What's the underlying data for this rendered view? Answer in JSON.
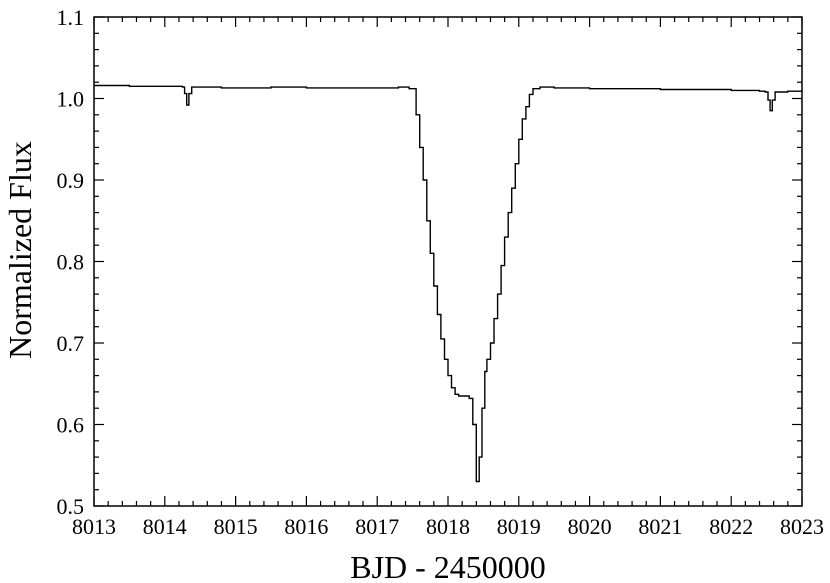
{
  "chart_data": {
    "type": "line",
    "title": "",
    "xlabel": "BJD - 2450000",
    "ylabel": "Normalized Flux",
    "xlim": [
      8013,
      8023
    ],
    "ylim": [
      0.5,
      1.1
    ],
    "grid": false,
    "x_ticks": [
      "8013",
      "8014",
      "8015",
      "8016",
      "8017",
      "8018",
      "8019",
      "8020",
      "8021",
      "8022",
      "8023"
    ],
    "y_ticks": [
      "0.5",
      "0.6",
      "0.7",
      "0.8",
      "0.9",
      "1.0",
      "1.1"
    ],
    "series": [
      {
        "name": "",
        "step": true,
        "points": [
          [
            8013.0,
            1.016
          ],
          [
            8013.5,
            1.015
          ],
          [
            8014.0,
            1.015
          ],
          [
            8014.25,
            1.014
          ],
          [
            8014.28,
            1.006
          ],
          [
            8014.31,
            0.992
          ],
          [
            8014.34,
            1.006
          ],
          [
            8014.38,
            1.014
          ],
          [
            8014.8,
            1.013
          ],
          [
            8015.0,
            1.013
          ],
          [
            8015.5,
            1.014
          ],
          [
            8016.0,
            1.013
          ],
          [
            8016.5,
            1.013
          ],
          [
            8017.0,
            1.013
          ],
          [
            8017.3,
            1.014
          ],
          [
            8017.45,
            1.012
          ],
          [
            8017.55,
            0.98
          ],
          [
            8017.6,
            0.94
          ],
          [
            8017.65,
            0.9
          ],
          [
            8017.7,
            0.85
          ],
          [
            8017.75,
            0.81
          ],
          [
            8017.8,
            0.77
          ],
          [
            8017.85,
            0.735
          ],
          [
            8017.9,
            0.705
          ],
          [
            8017.95,
            0.68
          ],
          [
            8018.0,
            0.66
          ],
          [
            8018.05,
            0.645
          ],
          [
            8018.1,
            0.637
          ],
          [
            8018.15,
            0.635
          ],
          [
            8018.25,
            0.635
          ],
          [
            8018.3,
            0.632
          ],
          [
            8018.35,
            0.6
          ],
          [
            8018.4,
            0.53
          ],
          [
            8018.44,
            0.56
          ],
          [
            8018.48,
            0.62
          ],
          [
            8018.52,
            0.665
          ],
          [
            8018.55,
            0.68
          ],
          [
            8018.6,
            0.7
          ],
          [
            8018.65,
            0.73
          ],
          [
            8018.7,
            0.76
          ],
          [
            8018.75,
            0.795
          ],
          [
            8018.8,
            0.83
          ],
          [
            8018.85,
            0.86
          ],
          [
            8018.9,
            0.89
          ],
          [
            8018.95,
            0.92
          ],
          [
            8019.0,
            0.95
          ],
          [
            8019.05,
            0.975
          ],
          [
            8019.1,
            0.99
          ],
          [
            8019.15,
            1.005
          ],
          [
            8019.2,
            1.012
          ],
          [
            8019.3,
            1.014
          ],
          [
            8019.5,
            1.013
          ],
          [
            8020.0,
            1.012
          ],
          [
            8020.5,
            1.012
          ],
          [
            8021.0,
            1.011
          ],
          [
            8021.5,
            1.011
          ],
          [
            8022.0,
            1.01
          ],
          [
            8022.4,
            1.009
          ],
          [
            8022.48,
            1.008
          ],
          [
            8022.52,
            0.998
          ],
          [
            8022.55,
            0.985
          ],
          [
            8022.58,
            0.998
          ],
          [
            8022.62,
            1.008
          ],
          [
            8022.8,
            1.009
          ],
          [
            8023.0,
            1.008
          ]
        ]
      }
    ]
  }
}
